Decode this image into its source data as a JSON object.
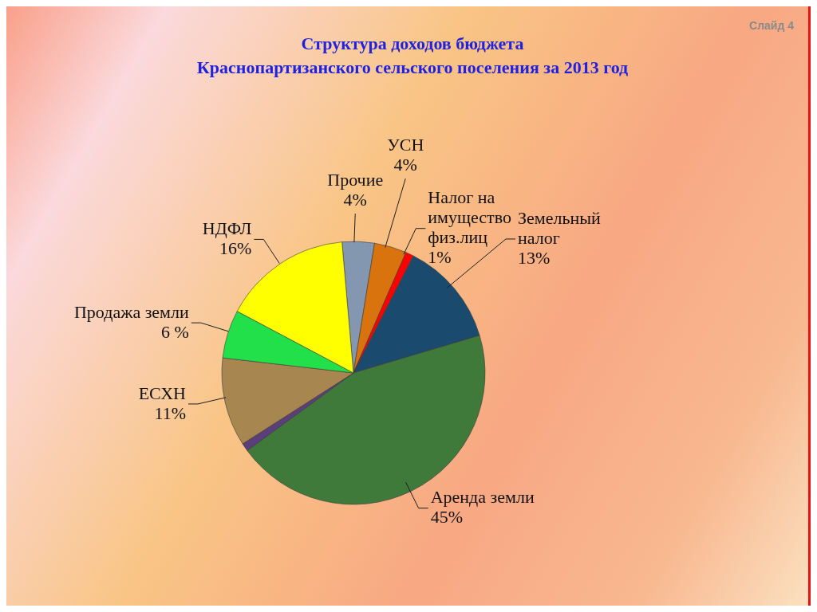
{
  "chart_data": {
    "type": "pie",
    "title": "Структура доходов бюджета",
    "subtitle": "Краснопартизанского сельского поселения за 2013 год",
    "categories": [
      "Прочие",
      "УСН",
      "Налог на имущество физ.лиц",
      "Земельный налог",
      "Аренда земли",
      null,
      "ЕСХН",
      "Продажа земли",
      "НДФЛ"
    ],
    "values": [
      4,
      4,
      1,
      13,
      45,
      1,
      11,
      6,
      16
    ],
    "value_labels": [
      "4%",
      "4%",
      "1%",
      "13%",
      "45%",
      null,
      "11%",
      "6 %",
      "16%"
    ],
    "colors": [
      "#8497b0",
      "#d9730d",
      "#ff0000",
      "#1a4b6e",
      "#3f7a3b",
      "#5a3f7a",
      "#a88650",
      "#22e04a",
      "#ffff00"
    ],
    "annotations": [
      "Слайд 4"
    ]
  }
}
